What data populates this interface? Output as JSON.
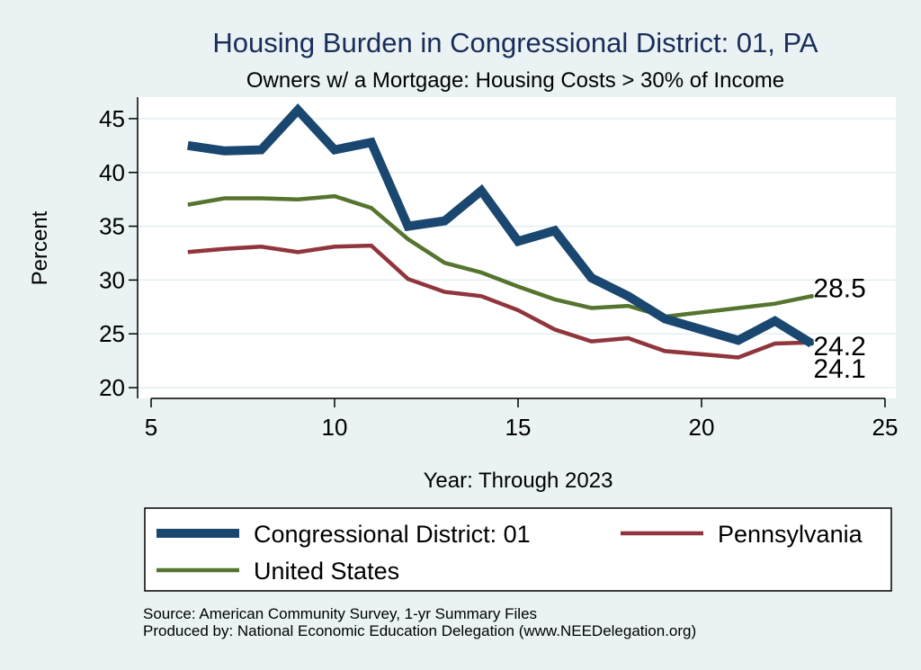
{
  "chart_data": {
    "type": "line",
    "title": "Housing Burden in Congressional District:  01, PA",
    "subtitle": "Owners w/ a Mortgage: Housing Costs > 30% of Income",
    "xlabel": "Year: Through 2023",
    "ylabel": "Percent",
    "xlim": [
      5,
      25
    ],
    "ylim": [
      19,
      47
    ],
    "xticks": [
      5,
      10,
      15,
      20,
      25
    ],
    "yticks": [
      20,
      25,
      30,
      35,
      40,
      45
    ],
    "grid": true,
    "legend_position": "bottom",
    "x": [
      6,
      7,
      8,
      9,
      10,
      11,
      12,
      13,
      14,
      15,
      16,
      17,
      18,
      19,
      20,
      21,
      22,
      23
    ],
    "series": [
      {
        "name": "Congressional District:  01",
        "color": "#1a476f",
        "values": [
          42.5,
          42.0,
          42.1,
          45.8,
          42.1,
          42.8,
          35.0,
          35.5,
          38.3,
          33.6,
          34.6,
          30.2,
          28.5,
          26.4,
          25.4,
          24.4,
          26.2,
          24.1
        ],
        "end_label": "24.1"
      },
      {
        "name": "Pennsylvania",
        "color": "#90353b",
        "values": [
          32.6,
          32.9,
          33.1,
          32.6,
          33.1,
          33.2,
          30.1,
          28.9,
          28.5,
          27.2,
          25.4,
          24.3,
          24.6,
          23.4,
          23.1,
          22.8,
          24.1,
          24.2
        ],
        "end_label": "24.2"
      },
      {
        "name": "United States",
        "color": "#55752f",
        "values": [
          37.0,
          37.6,
          37.6,
          37.5,
          37.8,
          36.7,
          33.8,
          31.6,
          30.7,
          29.4,
          28.2,
          27.4,
          27.6,
          26.6,
          27.0,
          27.4,
          27.8,
          28.5
        ],
        "end_label": "28.5"
      }
    ],
    "notes": [
      "Source: American Community Survey, 1-yr Summary Files",
      "Produced by: National Economic Education Delegation (www.NEEDelegation.org)"
    ]
  }
}
